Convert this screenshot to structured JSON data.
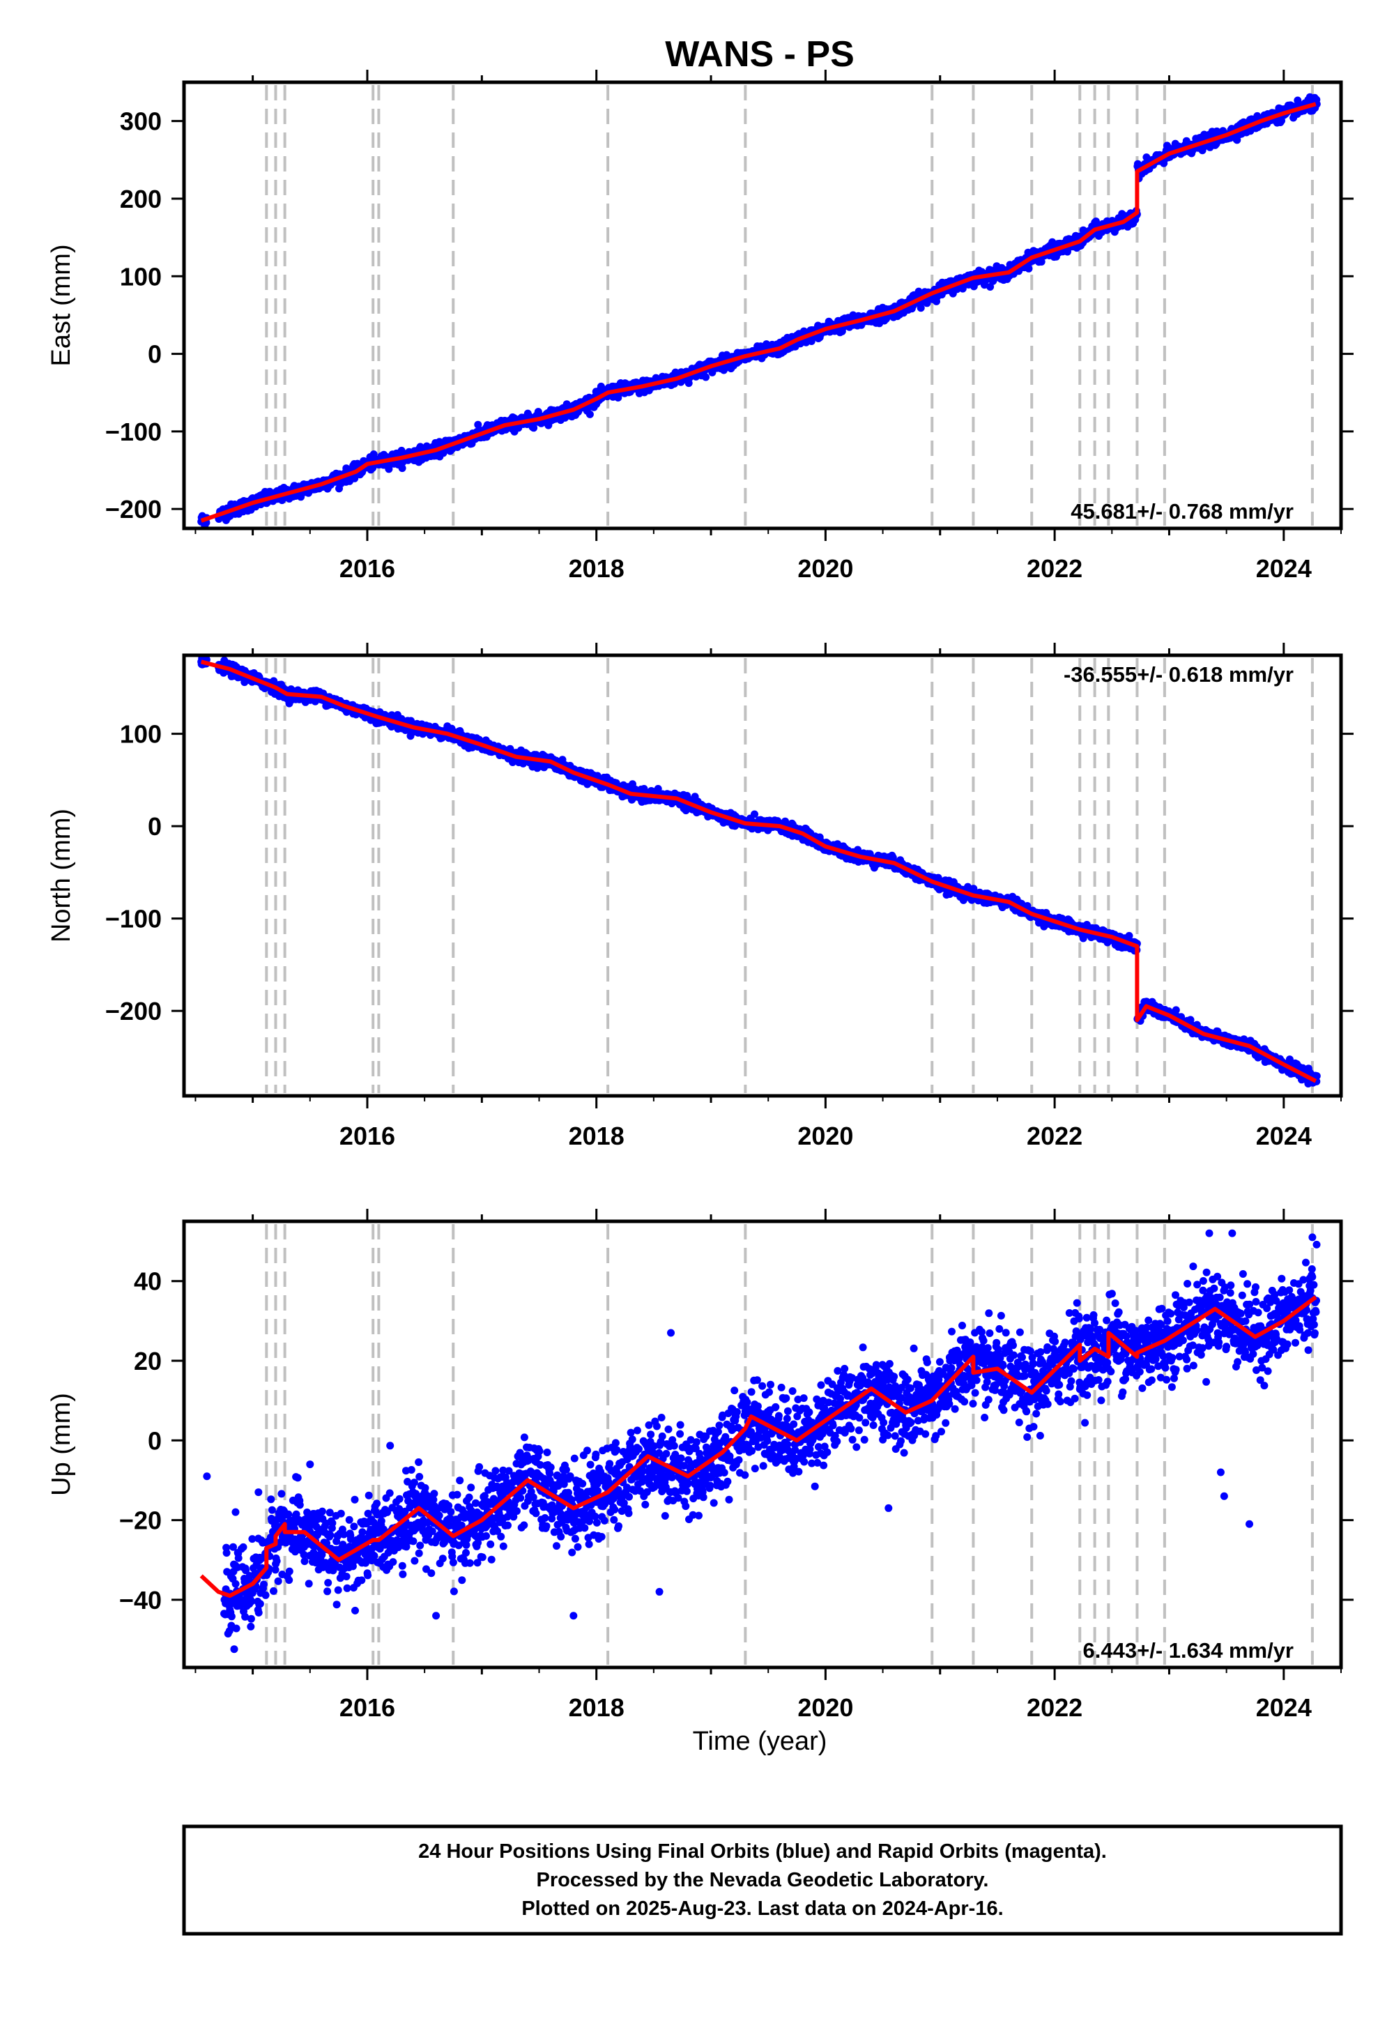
{
  "figure": {
    "title": "WANS - PS",
    "xlabel": "Time (year)",
    "colors": {
      "final_orbits": "#0000ff",
      "model": "#ff0000",
      "events": "#c0c0c0",
      "frame": "#000000"
    },
    "footer": [
      "24 Hour Positions Using Final Orbits (blue) and Rapid Orbits (magenta).",
      "Processed by the Nevada Geodetic Laboratory.",
      "Plotted on 2025-Aug-23. Last data on 2024-Apr-16."
    ]
  },
  "chart_data": [
    {
      "type": "scatter",
      "component": "east",
      "ylabel": "East (mm)",
      "rate_label": "45.681+/- 0.768 mm/yr",
      "rate_position": "bottom-right",
      "xlim": [
        2014.4,
        2024.5
      ],
      "ylim": [
        -225,
        350
      ],
      "xticks": [
        2016,
        2018,
        2020,
        2022,
        2024
      ],
      "yticks": [
        -200,
        -100,
        0,
        100,
        200,
        300
      ],
      "event_lines": [
        2015.12,
        2015.2,
        2015.28,
        2016.05,
        2016.1,
        2016.75,
        2018.1,
        2019.3,
        2020.93,
        2021.29,
        2021.8,
        2022.22,
        2022.35,
        2022.47,
        2022.72,
        2022.96,
        2024.25
      ],
      "series": [
        {
          "model": [
            [
              2014.55,
              -215
            ],
            [
              2014.75,
              -205
            ],
            [
              2015.0,
              -192
            ],
            [
              2015.3,
              -180
            ],
            [
              2015.6,
              -168
            ],
            [
              2015.9,
              -152
            ],
            [
              2016.0,
              -142
            ],
            [
              2016.3,
              -134
            ],
            [
              2016.6,
              -124
            ],
            [
              2016.9,
              -108
            ],
            [
              2017.2,
              -92
            ],
            [
              2017.5,
              -84
            ],
            [
              2017.8,
              -72
            ],
            [
              2018.0,
              -58
            ],
            [
              2018.1,
              -50
            ],
            [
              2018.4,
              -42
            ],
            [
              2018.7,
              -32
            ],
            [
              2019.0,
              -16
            ],
            [
              2019.3,
              -3
            ],
            [
              2019.6,
              7
            ],
            [
              2019.75,
              18
            ],
            [
              2020.0,
              32
            ],
            [
              2020.3,
              43
            ],
            [
              2020.6,
              55
            ],
            [
              2020.93,
              78
            ],
            [
              2021.29,
              98
            ],
            [
              2021.6,
              105
            ],
            [
              2021.8,
              124
            ],
            [
              2022.22,
              145
            ],
            [
              2022.35,
              160
            ],
            [
              2022.6,
              170
            ],
            [
              2022.72,
              182
            ],
            [
              2022.72,
              235
            ],
            [
              2023.0,
              258
            ],
            [
              2023.5,
              282
            ],
            [
              2023.8,
              300
            ],
            [
              2024.0,
              310
            ],
            [
              2024.28,
              322
            ]
          ],
          "noise_mm": 4,
          "start": 2014.55,
          "end": 2024.29,
          "gaps": [
            [
              2014.6,
              2014.7
            ]
          ]
        }
      ]
    },
    {
      "type": "scatter",
      "component": "north",
      "ylabel": "North (mm)",
      "rate_label": "-36.555+/- 0.618 mm/yr",
      "rate_position": "top-right",
      "xlim": [
        2014.4,
        2024.5
      ],
      "ylim": [
        -292,
        185
      ],
      "xticks": [
        2016,
        2018,
        2020,
        2022,
        2024
      ],
      "yticks": [
        -200,
        -100,
        0,
        100
      ],
      "event_lines": [
        2015.12,
        2015.2,
        2015.28,
        2016.05,
        2016.1,
        2016.75,
        2018.1,
        2019.3,
        2020.93,
        2021.29,
        2021.8,
        2022.22,
        2022.35,
        2022.47,
        2022.72,
        2022.96,
        2024.25
      ],
      "series": [
        {
          "model": [
            [
              2014.55,
              178
            ],
            [
              2014.8,
              170
            ],
            [
              2015.0,
              160
            ],
            [
              2015.2,
              150
            ],
            [
              2015.3,
              143
            ],
            [
              2015.6,
              140
            ],
            [
              2015.8,
              130
            ],
            [
              2016.1,
              118
            ],
            [
              2016.4,
              107
            ],
            [
              2016.7,
              100
            ],
            [
              2017.0,
              88
            ],
            [
              2017.3,
              75
            ],
            [
              2017.6,
              70
            ],
            [
              2017.8,
              58
            ],
            [
              2018.1,
              45
            ],
            [
              2018.3,
              35
            ],
            [
              2018.7,
              30
            ],
            [
              2019.0,
              15
            ],
            [
              2019.3,
              3
            ],
            [
              2019.6,
              0
            ],
            [
              2019.8,
              -8
            ],
            [
              2020.0,
              -22
            ],
            [
              2020.3,
              -33
            ],
            [
              2020.6,
              -40
            ],
            [
              2020.93,
              -60
            ],
            [
              2021.29,
              -75
            ],
            [
              2021.6,
              -82
            ],
            [
              2021.8,
              -95
            ],
            [
              2022.22,
              -112
            ],
            [
              2022.5,
              -120
            ],
            [
              2022.72,
              -130
            ],
            [
              2022.72,
              -210
            ],
            [
              2022.8,
              -195
            ],
            [
              2023.0,
              -205
            ],
            [
              2023.3,
              -225
            ],
            [
              2023.7,
              -238
            ],
            [
              2024.0,
              -258
            ],
            [
              2024.28,
              -276
            ]
          ],
          "noise_mm": 3,
          "start": 2014.55,
          "end": 2024.29,
          "gaps": [
            [
              2014.6,
              2014.7
            ]
          ]
        }
      ]
    },
    {
      "type": "scatter",
      "component": "up",
      "ylabel": "Up (mm)",
      "rate_label": "6.443+/- 1.634 mm/yr",
      "rate_position": "bottom-right",
      "xlim": [
        2014.4,
        2024.5
      ],
      "ylim": [
        -57,
        55
      ],
      "xticks": [
        2016,
        2018,
        2020,
        2022,
        2024
      ],
      "yticks": [
        -40,
        -20,
        0,
        20,
        40
      ],
      "event_lines": [
        2015.12,
        2015.2,
        2015.28,
        2016.05,
        2016.1,
        2016.75,
        2018.1,
        2019.3,
        2020.93,
        2021.29,
        2021.8,
        2022.22,
        2022.35,
        2022.47,
        2022.72,
        2022.96,
        2024.25
      ],
      "series": [
        {
          "model": [
            [
              2014.55,
              -34
            ],
            [
              2014.7,
              -38
            ],
            [
              2014.8,
              -39
            ],
            [
              2015.0,
              -36
            ],
            [
              2015.12,
              -32
            ],
            [
              2015.12,
              -27
            ],
            [
              2015.2,
              -26
            ],
            [
              2015.2,
              -24
            ],
            [
              2015.28,
              -21
            ],
            [
              2015.28,
              -23
            ],
            [
              2015.45,
              -23
            ],
            [
              2015.75,
              -30
            ],
            [
              2016.05,
              -25
            ],
            [
              2016.1,
              -25
            ],
            [
              2016.45,
              -17
            ],
            [
              2016.75,
              -24
            ],
            [
              2017.0,
              -20
            ],
            [
              2017.4,
              -10
            ],
            [
              2017.8,
              -17
            ],
            [
              2018.1,
              -13
            ],
            [
              2018.45,
              -4
            ],
            [
              2018.8,
              -9
            ],
            [
              2019.1,
              -3
            ],
            [
              2019.3,
              3
            ],
            [
              2019.35,
              6
            ],
            [
              2019.75,
              0
            ],
            [
              2020.1,
              7
            ],
            [
              2020.4,
              13
            ],
            [
              2020.7,
              7
            ],
            [
              2020.93,
              10
            ],
            [
              2021.29,
              21
            ],
            [
              2021.29,
              17
            ],
            [
              2021.5,
              18
            ],
            [
              2021.8,
              12
            ],
            [
              2022.22,
              24
            ],
            [
              2022.22,
              20
            ],
            [
              2022.35,
              23
            ],
            [
              2022.47,
              21
            ],
            [
              2022.47,
              27
            ],
            [
              2022.72,
              21
            ],
            [
              2022.72,
              22
            ],
            [
              2022.96,
              25
            ],
            [
              2023.4,
              33
            ],
            [
              2023.75,
              26
            ],
            [
              2024.0,
              30
            ],
            [
              2024.28,
              36
            ]
          ],
          "noise_mm": 5,
          "outliers": [
            [
              2014.6,
              -9
            ],
            [
              2014.85,
              -18
            ],
            [
              2015.05,
              -13
            ],
            [
              2015.5,
              -6
            ],
            [
              2018.65,
              27
            ],
            [
              2018.55,
              -38
            ],
            [
              2017.8,
              -44
            ],
            [
              2016.6,
              -44
            ],
            [
              2020.55,
              -17
            ],
            [
              2023.45,
              -8
            ],
            [
              2023.48,
              -14
            ],
            [
              2023.7,
              -21
            ],
            [
              2023.35,
              52
            ],
            [
              2023.55,
              52
            ],
            [
              2024.25,
              51
            ]
          ],
          "start": 2014.75,
          "end": 2024.29,
          "gaps": []
        }
      ]
    }
  ]
}
